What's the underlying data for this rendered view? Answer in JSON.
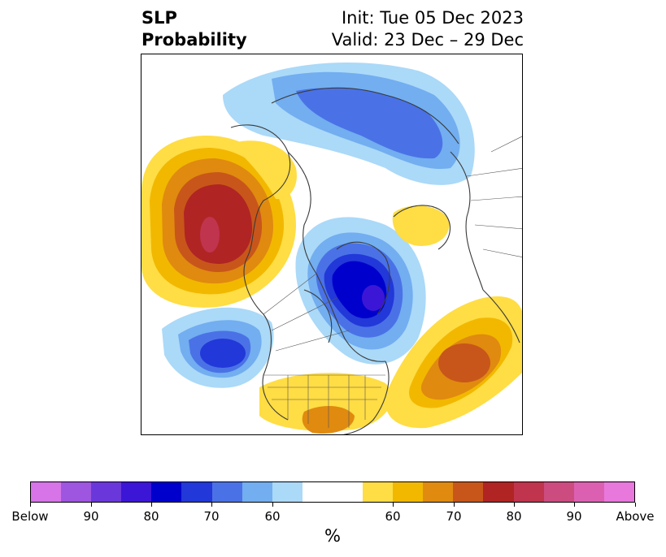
{
  "title": {
    "left_line1": "SLP",
    "left_line2": "Probability",
    "right_line1": "Init: Tue 05 Dec 2023",
    "right_line2": "Valid: 23 Dec – 29 Dec"
  },
  "colorbar": {
    "colors": [
      "#d674e8",
      "#9e55e0",
      "#6a38da",
      "#3c16d6",
      "#0000cc",
      "#2238d8",
      "#4a72e6",
      "#72aef0",
      "#abd9f8",
      "#ffffff",
      "#ffffff",
      "#ffdd44",
      "#f2b800",
      "#e08a10",
      "#c8561a",
      "#b02424",
      "#c0344e",
      "#cc4c80",
      "#dc60b2",
      "#e878dc"
    ],
    "labels": [
      "Below",
      "90",
      "80",
      "70",
      "60",
      "60",
      "70",
      "80",
      "90",
      "Above"
    ],
    "unit": "%"
  },
  "map": {
    "projection": "north-polar-stereographic",
    "anomalies": [
      {
        "name": "north-pacific-high",
        "sign": "above",
        "max_level": "80-85"
      },
      {
        "name": "east-pacific-low",
        "sign": "below",
        "max_level": "65-70"
      },
      {
        "name": "arctic-canada-low",
        "sign": "below",
        "max_level": "85-90"
      },
      {
        "name": "siberia-low",
        "sign": "below",
        "max_level": "65-70"
      },
      {
        "name": "atlantic-high",
        "sign": "above",
        "max_level": "70-75"
      },
      {
        "name": "scandinavia-high",
        "sign": "above",
        "max_level": "55-60"
      },
      {
        "name": "southern-us-high",
        "sign": "above",
        "max_level": "60-65"
      }
    ]
  }
}
